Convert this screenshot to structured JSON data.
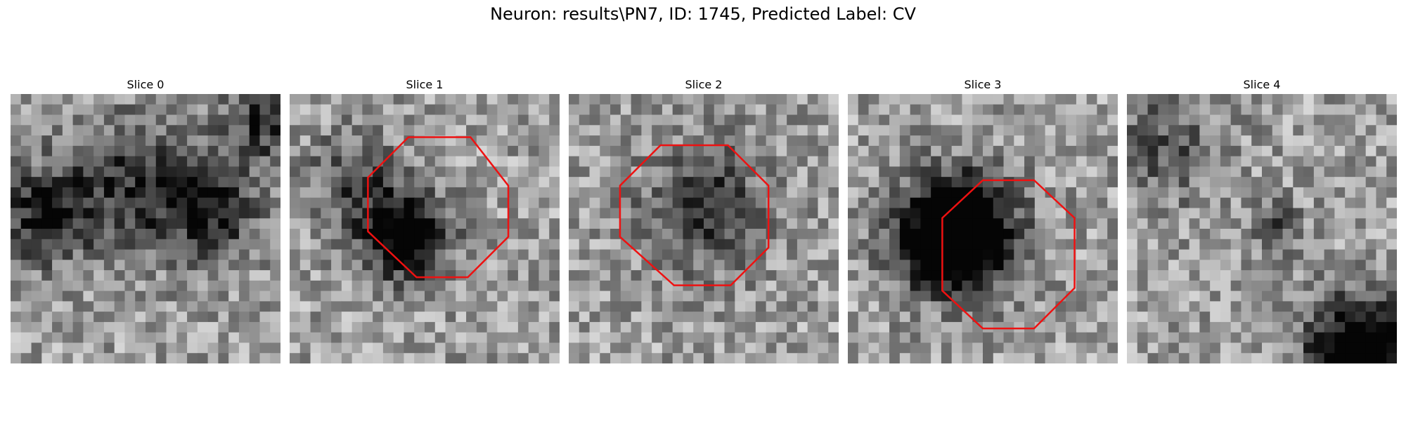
{
  "figure": {
    "title": "Neuron: results\\PN7, ID: 1745, Predicted Label: CV"
  },
  "panels": [
    {
      "title": "Slice 0",
      "has_outline": false,
      "dark_blobs": [
        [
          0.12,
          0.45,
          0.18,
          0.5
        ],
        [
          0.47,
          0.33,
          0.25,
          0.42
        ],
        [
          0.75,
          0.42,
          0.18,
          0.5
        ],
        [
          0.95,
          0.1,
          0.14,
          0.45
        ]
      ]
    },
    {
      "title": "Slice 1",
      "has_outline": true,
      "dark_blobs": [
        [
          0.42,
          0.52,
          0.16,
          0.85
        ],
        [
          0.23,
          0.3,
          0.15,
          0.35
        ]
      ]
    },
    {
      "title": "Slice 2",
      "has_outline": true,
      "dark_blobs": [
        [
          0.5,
          0.42,
          0.22,
          0.45
        ]
      ]
    },
    {
      "title": "Slice 3",
      "has_outline": true,
      "dark_blobs": [
        [
          0.4,
          0.52,
          0.2,
          1.3
        ]
      ]
    },
    {
      "title": "Slice 4",
      "has_outline": false,
      "dark_blobs": [
        [
          0.88,
          0.95,
          0.2,
          0.9
        ],
        [
          0.55,
          0.5,
          0.1,
          0.35
        ],
        [
          0.14,
          0.2,
          0.2,
          0.3
        ]
      ]
    }
  ],
  "colors": {
    "outline": "#ee1111"
  }
}
